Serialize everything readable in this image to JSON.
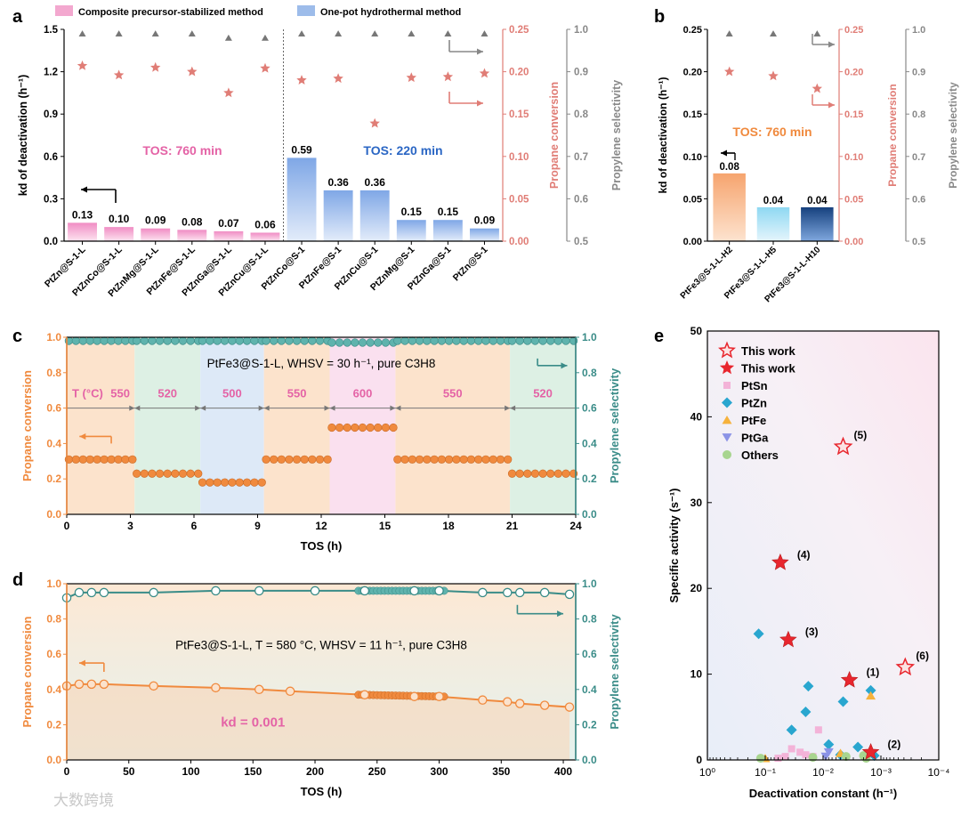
{
  "chart_data": [
    {
      "panel": "a",
      "type": "bar",
      "legend": [
        "Composite precursor-stabilized method",
        "One-pot hydrothermal method"
      ],
      "categories": [
        "PtZn@S-1-L",
        "PtZnCo@S-1-L",
        "PtZnMg@S-1-L",
        "PtZnFe@S-1-L",
        "PtZnGa@S-1-L",
        "PtZnCu@S-1-L",
        "PtZnCo@S-1",
        "PtZnFe@S-1",
        "PtZnCu@S-1",
        "PtZnMg@S-1",
        "PtZnGa@S-1",
        "PtZn@S-1"
      ],
      "kd": [
        0.13,
        0.1,
        0.09,
        0.08,
        0.07,
        0.06,
        0.59,
        0.36,
        0.36,
        0.15,
        0.15,
        0.09
      ],
      "kd_labels": [
        "0.13",
        "0.10",
        "0.09",
        "0.08",
        "0.07",
        "0.06",
        "0.59",
        "0.36",
        "0.36",
        "0.15",
        "0.15",
        "0.09"
      ],
      "conversion": [
        0.207,
        0.196,
        0.205,
        0.2,
        0.175,
        0.204,
        0.19,
        0.192,
        0.139,
        0.193,
        0.194,
        0.198
      ],
      "selectivity": [
        0.99,
        0.99,
        0.99,
        0.99,
        0.98,
        0.98,
        0.99,
        0.99,
        0.99,
        0.99,
        0.99,
        0.99
      ],
      "ylabel": "kd of deactivation (h⁻¹)",
      "y2label": "Propane conversion",
      "y3label": "Propylene selectivity",
      "ylim": [
        0,
        1.5
      ],
      "y2lim": [
        0,
        0.25
      ],
      "y3lim": [
        0.5,
        1.0
      ],
      "yticks": [
        "0.0",
        "0.3",
        "0.6",
        "0.9",
        "1.2",
        "1.5"
      ],
      "y2ticks": [
        "0.00",
        "0.05",
        "0.10",
        "0.15",
        "0.20",
        "0.25"
      ],
      "y3ticks": [
        "0.5",
        "0.6",
        "0.7",
        "0.8",
        "0.9",
        "1.0"
      ],
      "annotations": [
        "TOS: 760 min",
        "TOS: 220 min"
      ]
    },
    {
      "panel": "b",
      "type": "bar",
      "categories": [
        "PtFe3@S-1-L-H2",
        "PtFe3@S-1-L-H5",
        "PtFe3@S-1-L-H10"
      ],
      "kd": [
        0.08,
        0.04,
        0.04
      ],
      "kd_labels": [
        "0.08",
        "0.04",
        "0.04"
      ],
      "conversion": [
        0.2,
        0.195,
        0.18
      ],
      "selectivity": [
        0.99,
        0.99,
        0.99
      ],
      "ylim": [
        0,
        0.25
      ],
      "y2lim": [
        0,
        0.25
      ],
      "y3lim": [
        0.5,
        1.0
      ],
      "yticks": [
        "0.00",
        "0.05",
        "0.10",
        "0.15",
        "0.20",
        "0.25"
      ],
      "y2ticks": [
        "0.00",
        "0.05",
        "0.10",
        "0.15",
        "0.20",
        "0.25"
      ],
      "y3ticks": [
        "0.5",
        "0.6",
        "0.7",
        "0.8",
        "0.9",
        "1.0"
      ],
      "annotations": [
        "TOS: 760 min"
      ]
    },
    {
      "panel": "c",
      "type": "line",
      "title": "PtFe3@S-1-L, WHSV = 30 h⁻¹, pure C3H8",
      "xlabel": "TOS (h)",
      "ylabel": "Propane conversion",
      "y2label": "Propylene selectivity",
      "xlim": [
        0,
        24
      ],
      "ylim": [
        0,
        1.0
      ],
      "xticks": [
        "0",
        "3",
        "6",
        "9",
        "12",
        "15",
        "18",
        "21",
        "24"
      ],
      "yticks": [
        "0.0",
        "0.2",
        "0.4",
        "0.6",
        "0.8",
        "1.0"
      ],
      "temp_label": "T (°C)",
      "segments": [
        {
          "start": 0,
          "end": 3.2,
          "temp": "550",
          "conversion": 0.31,
          "selectivity": 0.98
        },
        {
          "start": 3.2,
          "end": 6.3,
          "temp": "520",
          "conversion": 0.23,
          "selectivity": 0.98
        },
        {
          "start": 6.3,
          "end": 9.3,
          "temp": "500",
          "conversion": 0.18,
          "selectivity": 0.98
        },
        {
          "start": 9.3,
          "end": 12.4,
          "temp": "550",
          "conversion": 0.31,
          "selectivity": 0.98
        },
        {
          "start": 12.4,
          "end": 15.5,
          "temp": "600",
          "conversion": 0.49,
          "selectivity": 0.97
        },
        {
          "start": 15.5,
          "end": 20.9,
          "temp": "550",
          "conversion": 0.31,
          "selectivity": 0.98
        },
        {
          "start": 20.9,
          "end": 24,
          "temp": "520",
          "conversion": 0.23,
          "selectivity": 0.98
        }
      ]
    },
    {
      "panel": "d",
      "type": "line",
      "title": "PtFe3@S-1-L, T = 580 °C, WHSV = 11 h⁻¹, pure C3H8",
      "xlabel": "TOS (h)",
      "ylabel": "Propane conversion",
      "y2label": "Propylene selectivity",
      "xlim": [
        0,
        410
      ],
      "ylim": [
        0,
        1.0
      ],
      "xticks": [
        "0",
        "50",
        "100",
        "150",
        "200",
        "250",
        "300",
        "350",
        "400"
      ],
      "yticks": [
        "0.0",
        "0.2",
        "0.4",
        "0.6",
        "0.8",
        "1.0"
      ],
      "kd_text": "kd = 0.001",
      "conversion": [
        [
          0,
          0.42
        ],
        [
          10,
          0.43
        ],
        [
          20,
          0.43
        ],
        [
          30,
          0.43
        ],
        [
          70,
          0.42
        ],
        [
          120,
          0.41
        ],
        [
          155,
          0.4
        ],
        [
          180,
          0.39
        ],
        [
          240,
          0.37
        ],
        [
          280,
          0.36
        ],
        [
          300,
          0.36
        ],
        [
          335,
          0.34
        ],
        [
          355,
          0.33
        ],
        [
          365,
          0.32
        ],
        [
          385,
          0.31
        ],
        [
          405,
          0.3
        ]
      ],
      "selectivity": [
        [
          0,
          0.92
        ],
        [
          10,
          0.95
        ],
        [
          20,
          0.95
        ],
        [
          30,
          0.95
        ],
        [
          70,
          0.95
        ],
        [
          120,
          0.96
        ],
        [
          155,
          0.96
        ],
        [
          200,
          0.96
        ],
        [
          240,
          0.96
        ],
        [
          280,
          0.96
        ],
        [
          300,
          0.96
        ],
        [
          335,
          0.95
        ],
        [
          355,
          0.95
        ],
        [
          365,
          0.95
        ],
        [
          385,
          0.95
        ],
        [
          405,
          0.94
        ]
      ]
    },
    {
      "panel": "e",
      "type": "scatter",
      "xlabel": "Deactivation constant (h⁻¹)",
      "ylabel": "Specific activity (s⁻¹)",
      "xscale": "log-reversed",
      "xlim": [
        1,
        0.0001
      ],
      "ylim": [
        0,
        50
      ],
      "xticks": [
        "10⁰",
        "10⁻¹",
        "10⁻²",
        "10⁻³",
        "10⁻⁴"
      ],
      "yticks": [
        "0",
        "10",
        "20",
        "30",
        "40",
        "50"
      ],
      "legend": [
        "This work",
        "This work",
        "PtSn",
        "PtZn",
        "PtFe",
        "PtGa",
        "Others"
      ],
      "this_work_open": [
        {
          "x": 0.0045,
          "y": 36.5,
          "label": "(5)"
        },
        {
          "x": 0.00038,
          "y": 10.8,
          "label": "(6)"
        }
      ],
      "this_work_filled": [
        {
          "x": 0.055,
          "y": 23,
          "label": "(4)"
        },
        {
          "x": 0.04,
          "y": 14,
          "label": "(3)"
        },
        {
          "x": 0.0035,
          "y": 9.3,
          "label": "(1)"
        },
        {
          "x": 0.0015,
          "y": 0.9,
          "label": "(2)"
        }
      ],
      "PtSn": [
        [
          0.035,
          1.3
        ],
        [
          0.045,
          0.4
        ],
        [
          0.02,
          0.6
        ],
        [
          0.012,
          3.5
        ],
        [
          0.06,
          0.2
        ],
        [
          0.025,
          0.9
        ],
        [
          0.015,
          0.4
        ]
      ],
      "PtZn": [
        [
          0.13,
          14.7
        ],
        [
          0.035,
          3.5
        ],
        [
          0.02,
          5.6
        ],
        [
          0.018,
          8.6
        ],
        [
          0.008,
          1.8
        ],
        [
          0.0045,
          6.8
        ],
        [
          0.0015,
          8.1
        ],
        [
          0.0025,
          1.5
        ],
        [
          0.005,
          0.6
        ],
        [
          0.0013,
          0.5
        ]
      ],
      "PtFe": [
        [
          0.0015,
          7.5
        ],
        [
          0.1,
          0.2
        ],
        [
          0.005,
          0.8
        ]
      ],
      "PtGa": [
        [
          0.008,
          0.9
        ],
        [
          0.009,
          0.4
        ]
      ],
      "Others": [
        [
          0.12,
          0.2
        ],
        [
          0.015,
          0.3
        ],
        [
          0.004,
          0.4
        ],
        [
          0.002,
          0.5
        ],
        [
          0.0018,
          0.2
        ]
      ]
    }
  ],
  "page": {
    "panel_a_letter": "a",
    "panel_b_letter": "b",
    "panel_c_letter": "c",
    "panel_d_letter": "d",
    "panel_e_letter": "e",
    "watermark": "大数跨境"
  },
  "colors": {
    "pink_bar": "#f3a8cf",
    "blue_bar": "#9dbcea",
    "star": "#e07d76",
    "tri": "#777777",
    "orange": "#f08a3e",
    "teal": "#3a8c88",
    "pink_text": "#e463a6",
    "blue_text": "#2a66c4"
  }
}
